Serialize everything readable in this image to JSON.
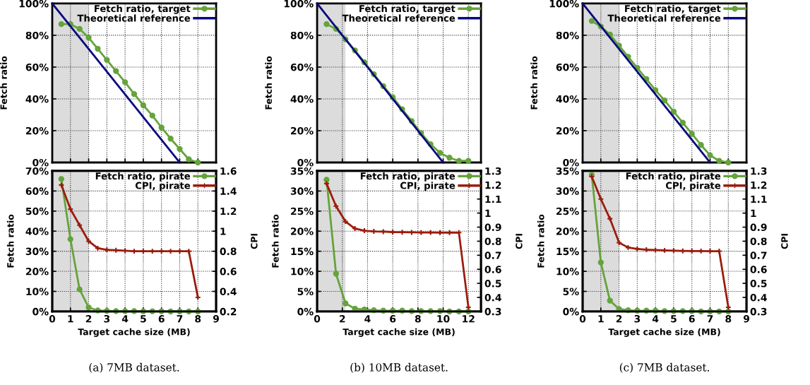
{
  "chart_data": [
    {
      "type": "line",
      "ylabel": "Fetch ratio",
      "xlim": [
        0,
        9
      ],
      "xticks": [
        0,
        1,
        2,
        3,
        4,
        5,
        6,
        7,
        8,
        9
      ],
      "ylim": [
        0,
        100
      ],
      "yticks": [
        {
          "value": 0,
          "label": "0%"
        },
        {
          "value": 20,
          "label": "20%"
        },
        {
          "value": 40,
          "label": "40%"
        },
        {
          "value": 60,
          "label": "60%"
        },
        {
          "value": 80,
          "label": "80%"
        },
        {
          "value": 100,
          "label": "100%"
        }
      ],
      "tick_labels": "y",
      "grid": true,
      "legend": "top right",
      "bands": [
        {
          "axis": "x",
          "from": 0,
          "to": 2,
          "color": "#dcdcdc"
        }
      ],
      "series": [
        {
          "name": "Fetch ratio, target",
          "type": "line",
          "color": "#65a33b",
          "marker": "circle",
          "x": [
            0.5,
            1,
            1.5,
            2,
            2.5,
            3,
            3.5,
            4,
            4.5,
            5,
            5.5,
            6,
            6.5,
            7,
            7.5,
            8
          ],
          "values": [
            87,
            87,
            84,
            78.5,
            71.5,
            64.5,
            57.5,
            50.5,
            43,
            36,
            29.5,
            22,
            15,
            8.5,
            2,
            0
          ]
        },
        {
          "name": "Theoretical reference",
          "type": "line",
          "color": "#0a0a80",
          "marker": "none",
          "x": [
            0,
            7
          ],
          "values": [
            100,
            0
          ]
        }
      ]
    },
    {
      "type": "line",
      "ylabel": "Fetch ratio",
      "xlim": [
        0,
        13
      ],
      "xticks": [
        0,
        2,
        4,
        6,
        8,
        10,
        12
      ],
      "ylim": [
        0,
        100
      ],
      "yticks": [
        {
          "value": 0,
          "label": "0%"
        },
        {
          "value": 20,
          "label": "20%"
        },
        {
          "value": 40,
          "label": "40%"
        },
        {
          "value": 60,
          "label": "60%"
        },
        {
          "value": 80,
          "label": "80%"
        },
        {
          "value": 100,
          "label": "100%"
        }
      ],
      "tick_labels": "y",
      "grid": true,
      "legend": "top right",
      "bands": [
        {
          "axis": "x",
          "from": 0,
          "to": 2.25,
          "color": "#dcdcdc"
        }
      ],
      "series": [
        {
          "name": "Fetch ratio, target",
          "type": "line",
          "color": "#65a33b",
          "marker": "circle",
          "x": [
            0.75,
            1.5,
            2.25,
            3,
            3.75,
            4.5,
            5.25,
            6,
            6.75,
            7.5,
            8.25,
            9,
            9.75,
            10.5,
            11.25,
            12
          ],
          "values": [
            87,
            84,
            77.5,
            70.5,
            63,
            55.5,
            48,
            41,
            33.5,
            26,
            18.5,
            11.5,
            6,
            3,
            1,
            1
          ]
        },
        {
          "name": "Theoretical reference",
          "type": "line",
          "color": "#0a0a80",
          "marker": "none",
          "x": [
            0,
            10
          ],
          "values": [
            100,
            0
          ]
        }
      ]
    },
    {
      "type": "line",
      "ylabel": "Fetch ratio",
      "xlim": [
        0,
        9
      ],
      "xticks": [
        0,
        1,
        2,
        3,
        4,
        5,
        6,
        7,
        8,
        9
      ],
      "ylim": [
        0,
        100
      ],
      "yticks": [
        {
          "value": 0,
          "label": "0%"
        },
        {
          "value": 20,
          "label": "20%"
        },
        {
          "value": 40,
          "label": "40%"
        },
        {
          "value": 60,
          "label": "60%"
        },
        {
          "value": 80,
          "label": "80%"
        },
        {
          "value": 100,
          "label": "100%"
        }
      ],
      "tick_labels": "y",
      "grid": true,
      "legend": "top right",
      "bands": [
        {
          "axis": "x",
          "from": 0,
          "to": 2,
          "color": "#dcdcdc"
        }
      ],
      "series": [
        {
          "name": "Fetch ratio, target",
          "type": "line",
          "color": "#65a33b",
          "marker": "circle",
          "x": [
            0.5,
            1,
            1.5,
            2,
            2.5,
            3,
            3.5,
            4,
            4.5,
            5,
            5.5,
            6,
            6.5,
            7,
            7.5,
            8
          ],
          "values": [
            89,
            85.5,
            80.5,
            73.5,
            66.5,
            59.5,
            52.5,
            45.5,
            39,
            32,
            25,
            18,
            11,
            4.5,
            1,
            0
          ]
        },
        {
          "name": "Theoretical reference",
          "type": "line",
          "color": "#0a0a80",
          "marker": "none",
          "x": [
            0,
            7
          ],
          "values": [
            100,
            0
          ]
        }
      ]
    },
    {
      "type": "line",
      "xlabel": "Target cache size (MB)",
      "ylabel": "Fetch ratio",
      "y2label": "CPI",
      "xlim": [
        0,
        9
      ],
      "xticks": [
        0,
        1,
        2,
        3,
        4,
        5,
        6,
        7,
        8,
        9
      ],
      "ylim": [
        0,
        70
      ],
      "yticks": [
        {
          "value": 0,
          "label": "0%"
        },
        {
          "value": 10,
          "label": "10%"
        },
        {
          "value": 20,
          "label": "20%"
        },
        {
          "value": 30,
          "label": "30%"
        },
        {
          "value": 40,
          "label": "40%"
        },
        {
          "value": 50,
          "label": "50%"
        },
        {
          "value": 60,
          "label": "60%"
        },
        {
          "value": 70,
          "label": "70%"
        }
      ],
      "y2lim": [
        0.2,
        1.6
      ],
      "y2ticks": [
        0.2,
        0.4,
        0.6,
        0.8,
        1,
        1.2,
        1.4,
        1.6
      ],
      "grid": true,
      "legend": "top right",
      "bands": [
        {
          "axis": "x",
          "from": 0,
          "to": 2,
          "color": "#dcdcdc"
        }
      ],
      "annotations": [
        "(a) 7MB dataset."
      ],
      "series": [
        {
          "name": "Fetch ratio, pirate",
          "type": "line",
          "color": "#65a33b",
          "marker": "circle",
          "x": [
            0.5,
            1,
            1.5,
            2,
            2.5,
            3,
            3.5,
            4,
            4.5,
            5,
            5.5,
            6,
            6.5,
            7,
            7.5,
            8
          ],
          "values": [
            66,
            36,
            11,
            2,
            0.5,
            0.3,
            0.2,
            0.2,
            0.2,
            0.1,
            0.1,
            0.1,
            0,
            0,
            0,
            0
          ]
        },
        {
          "name": "CPI, pirate",
          "type": "line",
          "color": "#9b1c0c",
          "marker": "cross",
          "axis": "y2",
          "x": [
            0.5,
            1,
            1.5,
            2,
            2.5,
            3,
            3.5,
            4,
            4.5,
            5,
            5.5,
            6,
            6.5,
            7,
            7.5,
            8
          ],
          "values": [
            1.46,
            1.22,
            1.06,
            0.9,
            0.83,
            0.815,
            0.81,
            0.805,
            0.8,
            0.8,
            0.8,
            0.8,
            0.8,
            0.8,
            0.8,
            0.34
          ]
        }
      ]
    },
    {
      "type": "line",
      "xlabel": "Target cache size (MB)",
      "ylabel": "Fetch ratio",
      "y2label": "CPI",
      "xlim": [
        0,
        13
      ],
      "xticks": [
        0,
        2,
        4,
        6,
        8,
        10,
        12
      ],
      "ylim": [
        0,
        35
      ],
      "yticks": [
        {
          "value": 0,
          "label": "0%"
        },
        {
          "value": 5,
          "label": "5%"
        },
        {
          "value": 10,
          "label": "10%"
        },
        {
          "value": 15,
          "label": "15%"
        },
        {
          "value": 20,
          "label": "20%"
        },
        {
          "value": 25,
          "label": "25%"
        },
        {
          "value": 30,
          "label": "30%"
        },
        {
          "value": 35,
          "label": "35%"
        }
      ],
      "y2lim": [
        0.3,
        1.3
      ],
      "y2ticks": [
        0.3,
        0.4,
        0.5,
        0.6,
        0.7,
        0.8,
        0.9,
        1,
        1.1,
        1.2,
        1.3
      ],
      "grid": true,
      "legend": "top right",
      "bands": [
        {
          "axis": "x",
          "from": 0,
          "to": 2.25,
          "color": "#dcdcdc"
        }
      ],
      "annotations": [
        "(b) 10MB dataset."
      ],
      "series": [
        {
          "name": "Fetch ratio, pirate",
          "type": "line",
          "color": "#65a33b",
          "marker": "circle",
          "x": [
            0.75,
            1.5,
            2.25,
            3,
            3.75,
            4.5,
            5.25,
            6,
            6.75,
            7.5,
            8.25,
            9,
            9.75,
            10.5,
            11.25,
            12
          ],
          "values": [
            32.8,
            9.4,
            2,
            0.7,
            0.5,
            0.3,
            0.2,
            0.2,
            0.2,
            0.1,
            0.1,
            0.1,
            0.1,
            0,
            0,
            0
          ]
        },
        {
          "name": "CPI, pirate",
          "type": "line",
          "color": "#9b1c0c",
          "marker": "cross",
          "axis": "y2",
          "x": [
            0.75,
            1.5,
            2.25,
            3,
            3.75,
            4.5,
            5.25,
            6,
            6.75,
            7.5,
            8.25,
            9,
            9.75,
            10.5,
            11.25,
            12
          ],
          "values": [
            1.21,
            1.05,
            0.94,
            0.89,
            0.875,
            0.87,
            0.868,
            0.865,
            0.864,
            0.863,
            0.862,
            0.862,
            0.861,
            0.861,
            0.861,
            0.33
          ]
        }
      ]
    },
    {
      "type": "line",
      "xlabel": "Target cache size (MB)",
      "ylabel": "Fetch ratio",
      "y2label": "CPI",
      "xlim": [
        0,
        9
      ],
      "xticks": [
        0,
        1,
        2,
        3,
        4,
        5,
        6,
        7,
        8,
        9
      ],
      "ylim": [
        0,
        35
      ],
      "yticks": [
        {
          "value": 0,
          "label": "0%"
        },
        {
          "value": 5,
          "label": "5%"
        },
        {
          "value": 10,
          "label": "10%"
        },
        {
          "value": 15,
          "label": "15%"
        },
        {
          "value": 20,
          "label": "20%"
        },
        {
          "value": 25,
          "label": "25%"
        },
        {
          "value": 30,
          "label": "30%"
        },
        {
          "value": 35,
          "label": "35%"
        }
      ],
      "y2lim": [
        0.3,
        1.3
      ],
      "y2ticks": [
        0.3,
        0.4,
        0.5,
        0.6,
        0.7,
        0.8,
        0.9,
        1,
        1.1,
        1.2,
        1.3
      ],
      "grid": true,
      "legend": "top right",
      "bands": [
        {
          "axis": "x",
          "from": 0,
          "to": 2,
          "color": "#dcdcdc"
        }
      ],
      "annotations": [
        "(c) 7MB dataset."
      ],
      "series": [
        {
          "name": "Fetch ratio, pirate",
          "type": "line",
          "color": "#65a33b",
          "marker": "circle",
          "x": [
            0.5,
            1,
            1.5,
            2,
            2.5,
            3,
            3.5,
            4,
            4.5,
            5,
            5.5,
            6,
            6.5,
            7,
            7.5,
            8
          ],
          "values": [
            34,
            12.2,
            2.7,
            0.6,
            0.3,
            0.2,
            0.2,
            0.2,
            0.1,
            0.1,
            0.1,
            0.1,
            0,
            0,
            0,
            0
          ]
        },
        {
          "name": "CPI, pirate",
          "type": "line",
          "color": "#9b1c0c",
          "marker": "cross",
          "axis": "y2",
          "x": [
            0.5,
            1,
            1.5,
            2,
            2.5,
            3,
            3.5,
            4,
            4.5,
            5,
            5.5,
            6,
            6.5,
            7,
            7.5,
            8
          ],
          "values": [
            1.26,
            1.1,
            0.96,
            0.79,
            0.755,
            0.745,
            0.74,
            0.737,
            0.735,
            0.733,
            0.731,
            0.73,
            0.73,
            0.729,
            0.729,
            0.33
          ]
        }
      ]
    }
  ]
}
